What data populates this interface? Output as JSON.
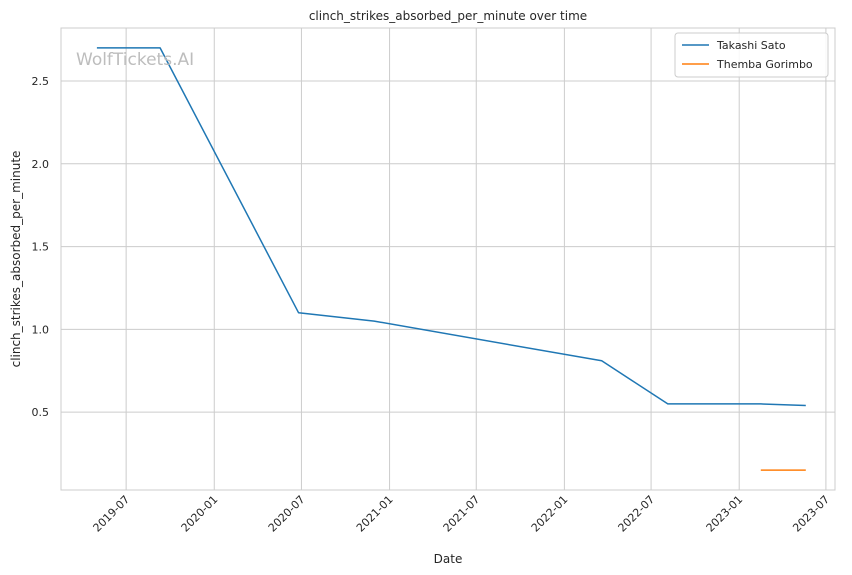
{
  "chart_data": {
    "type": "line",
    "title": "clinch_strikes_absorbed_per_minute over time",
    "xlabel": "Date",
    "ylabel": "clinch_strikes_absorbed_per_minute",
    "watermark": "WolfTickets.AI",
    "x_ticks": [
      "2019-07",
      "2020-01",
      "2020-07",
      "2021-01",
      "2021-07",
      "2022-01",
      "2022-07",
      "2023-01",
      "2023-07"
    ],
    "y_ticks": [
      "0.5",
      "1.0",
      "1.5",
      "2.0",
      "2.5"
    ],
    "xlim": [
      "2019-02-15",
      "2023-07-20"
    ],
    "ylim": [
      0.03,
      2.82
    ],
    "grid": true,
    "legend_position": "top-right",
    "series": [
      {
        "name": "Takashi Sato",
        "color": "#1f77b4",
        "points": [
          {
            "x": "2019-05-01",
            "y": 2.7
          },
          {
            "x": "2019-09-10",
            "y": 2.7
          },
          {
            "x": "2020-06-25",
            "y": 1.1
          },
          {
            "x": "2020-11-30",
            "y": 1.05
          },
          {
            "x": "2022-03-20",
            "y": 0.81
          },
          {
            "x": "2022-08-05",
            "y": 0.55
          },
          {
            "x": "2023-02-15",
            "y": 0.55
          },
          {
            "x": "2023-05-20",
            "y": 0.54
          }
        ]
      },
      {
        "name": "Themba Gorimbo",
        "color": "#ff7f0e",
        "points": [
          {
            "x": "2023-02-15",
            "y": 0.15
          },
          {
            "x": "2023-05-20",
            "y": 0.15
          }
        ]
      }
    ]
  }
}
